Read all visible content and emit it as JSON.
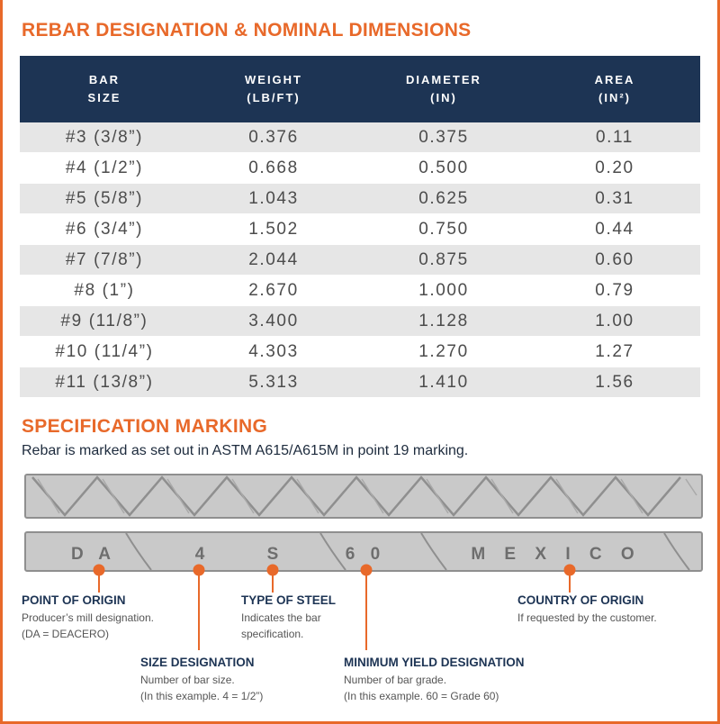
{
  "titles": {
    "table_title": "REBAR DESIGNATION & NOMINAL DIMENSIONS",
    "marking_title": "SPECIFICATION MARKING"
  },
  "table": {
    "headers": [
      {
        "line1": "BAR",
        "line2": "SIZE"
      },
      {
        "line1": "WEIGHT",
        "line2": "(LB/FT)"
      },
      {
        "line1": "DIAMETER",
        "line2": "(IN)"
      },
      {
        "line1": "AREA",
        "line2": "(IN²)"
      }
    ],
    "rows": [
      [
        "#3 (3/8”)",
        "0.376",
        "0.375",
        "0.11"
      ],
      [
        "#4 (1/2”)",
        "0.668",
        "0.500",
        "0.20"
      ],
      [
        "#5 (5/8”)",
        "1.043",
        "0.625",
        "0.31"
      ],
      [
        "#6 (3/4”)",
        "1.502",
        "0.750",
        "0.44"
      ],
      [
        "#7 (7/8”)",
        "2.044",
        "0.875",
        "0.60"
      ],
      [
        "#8 (1”)",
        "2.670",
        "1.000",
        "0.79"
      ],
      [
        "#9 (11/8”)",
        "3.400",
        "1.128",
        "1.00"
      ],
      [
        "#10 (11/4”)",
        "4.303",
        "1.270",
        "1.27"
      ],
      [
        "#11 (13/8”)",
        "5.313",
        "1.410",
        "1.56"
      ]
    ]
  },
  "marking": {
    "intro": "Rebar is marked as set out in ASTM A615/A615M in point 19 marking.",
    "bar_letters": {
      "da": "D A",
      "size": "4",
      "steel": "S",
      "grade": "6 0",
      "country": "M E X I C O"
    },
    "callouts": {
      "origin": {
        "title": "POINT OF ORIGIN",
        "lines": [
          "Producer’s mill designation.",
          "(DA = DEACERO)"
        ]
      },
      "size": {
        "title": "SIZE DESIGNATION",
        "lines": [
          "Number of bar size.",
          "(In this example. 4 = 1/2”)"
        ]
      },
      "steel": {
        "title": "TYPE OF STEEL",
        "lines": [
          "Indicates the bar",
          "specification."
        ]
      },
      "yield": {
        "title": "MINIMUM YIELD DESIGNATION",
        "lines": [
          "Number of bar grade.",
          "(In this example. 60 = Grade 60)"
        ]
      },
      "country": {
        "title": "COUNTRY OF ORIGIN",
        "lines": [
          "If requested by the customer."
        ]
      }
    }
  },
  "colors": {
    "accent_orange": "#e8692a",
    "header_navy": "#1d3454",
    "row_gray": "#e6e6e6",
    "bar_gray": "#c9c9c9"
  }
}
